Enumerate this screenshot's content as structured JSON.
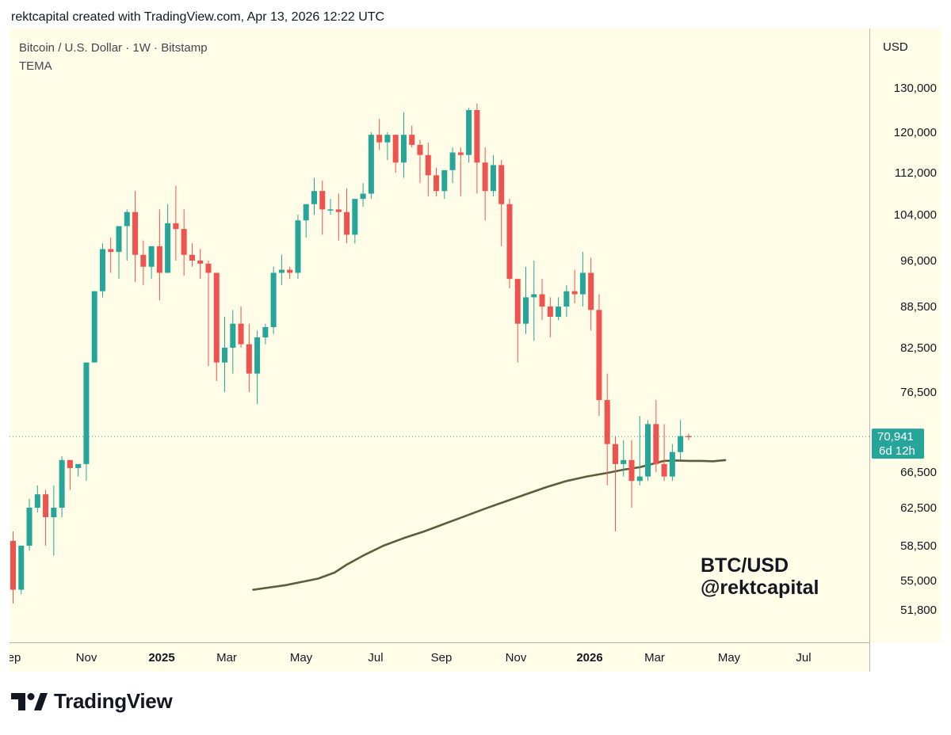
{
  "header": {
    "attribution": "rektcapital created with TradingView.com, Apr 13, 2026 12:22 UTC"
  },
  "footer": {
    "brand": "TradingView",
    "logo_icon": "tradingview-logo-icon"
  },
  "colors": {
    "background": "#fffde8",
    "up": "#26a69a",
    "down": "#ef5350",
    "tema": "#5d5d3d",
    "axis_text": "#131722",
    "price_tag": "#26a69a"
  },
  "chart_data": {
    "type": "candlestick",
    "title": "Bitcoin / U.S. Dollar · 1W · Bitstamp",
    "indicator": "TEMA",
    "currency": "USD",
    "watermark": [
      "BTC/USD",
      "@rektcapital"
    ],
    "last_price_label": "70,941",
    "countdown_label": "6d 12h",
    "last_price": 70941,
    "y_ticks": [
      130000,
      120000,
      112000,
      104000,
      96000,
      88500,
      82500,
      76500,
      66500,
      62500,
      58500,
      55000,
      51800
    ],
    "y_tick_labels": [
      "130,000",
      "120,000",
      "112,000",
      "104,000",
      "96,000",
      "88,500",
      "82,500",
      "76,500",
      "66,500",
      "62,500",
      "58,500",
      "55,000",
      "51,800"
    ],
    "x_labels": [
      {
        "label": "ep",
        "bold": false
      },
      {
        "label": "Nov",
        "bold": false
      },
      {
        "label": "2025",
        "bold": true
      },
      {
        "label": "Mar",
        "bold": false
      },
      {
        "label": "May",
        "bold": false
      },
      {
        "label": "Jul",
        "bold": false
      },
      {
        "label": "Sep",
        "bold": false
      },
      {
        "label": "Nov",
        "bold": false
      },
      {
        "label": "2026",
        "bold": true
      },
      {
        "label": "Mar",
        "bold": false
      },
      {
        "label": "May",
        "bold": false
      },
      {
        "label": "Jul",
        "bold": false
      }
    ],
    "candles_ohlc": [
      [
        59000,
        60000,
        52500,
        54000
      ],
      [
        54000,
        58500,
        53500,
        58500
      ],
      [
        58500,
        63500,
        58000,
        62500
      ],
      [
        62500,
        65000,
        62000,
        64000
      ],
      [
        64000,
        64500,
        58500,
        61500
      ],
      [
        61500,
        65000,
        57500,
        62500
      ],
      [
        62500,
        68500,
        61500,
        68000
      ],
      [
        68000,
        68000,
        64500,
        67000
      ],
      [
        67000,
        67500,
        66000,
        67500
      ],
      [
        67500,
        74000,
        65500,
        80500
      ],
      [
        80500,
        91000,
        80500,
        91000
      ],
      [
        91000,
        99000,
        90000,
        98000
      ],
      [
        98000,
        100000,
        94000,
        97500
      ],
      [
        97500,
        102000,
        93000,
        102000
      ],
      [
        102000,
        105000,
        96000,
        104500
      ],
      [
        104500,
        108500,
        92500,
        97000
      ],
      [
        97000,
        99500,
        92000,
        95000
      ],
      [
        95000,
        98000,
        93000,
        98500
      ],
      [
        98500,
        105000,
        89500,
        94000
      ],
      [
        94000,
        106000,
        94000,
        102500
      ],
      [
        102500,
        109500,
        96000,
        101500
      ],
      [
        101500,
        105000,
        93500,
        97000
      ],
      [
        97000,
        99000,
        95000,
        96000
      ],
      [
        96000,
        98000,
        93000,
        95500
      ],
      [
        95500,
        96000,
        80000,
        94000
      ],
      [
        94000,
        94000,
        78000,
        80500
      ],
      [
        80500,
        87000,
        76500,
        82500
      ],
      [
        82500,
        88000,
        79000,
        86000
      ],
      [
        86000,
        88500,
        82500,
        83000
      ],
      [
        83000,
        86000,
        76500,
        79000
      ],
      [
        79000,
        85000,
        75000,
        84000
      ],
      [
        84000,
        86000,
        83000,
        85500
      ],
      [
        85500,
        95000,
        84500,
        94000
      ],
      [
        94000,
        97000,
        92000,
        94500
      ],
      [
        94500,
        95000,
        93000,
        94000
      ],
      [
        94000,
        104000,
        93000,
        103000
      ],
      [
        103000,
        106000,
        100000,
        106000
      ],
      [
        106000,
        111000,
        104000,
        108500
      ],
      [
        108500,
        110500,
        100500,
        105000
      ],
      [
        105000,
        107000,
        104000,
        105000
      ],
      [
        105000,
        108000,
        99500,
        104500
      ],
      [
        104500,
        109000,
        99000,
        100500
      ],
      [
        100500,
        107000,
        99000,
        107000
      ],
      [
        107000,
        110000,
        105500,
        108000
      ],
      [
        108000,
        120000,
        107000,
        119500
      ],
      [
        119500,
        123000,
        116500,
        118000
      ],
      [
        118000,
        120000,
        114500,
        119500
      ],
      [
        119500,
        119500,
        112000,
        114000
      ],
      [
        114000,
        124500,
        111000,
        119500
      ],
      [
        119500,
        121500,
        117000,
        117500
      ],
      [
        117500,
        118500,
        110000,
        115500
      ],
      [
        115500,
        118000,
        107500,
        111500
      ],
      [
        111500,
        113000,
        107500,
        108500
      ],
      [
        108500,
        112000,
        107000,
        112500
      ],
      [
        112500,
        117000,
        110000,
        116000
      ],
      [
        116000,
        117000,
        107500,
        115500
      ],
      [
        115500,
        125500,
        114000,
        125000
      ],
      [
        125000,
        126500,
        108000,
        114000
      ],
      [
        114000,
        117000,
        103000,
        108500
      ],
      [
        108500,
        115500,
        107500,
        113500
      ],
      [
        113500,
        114500,
        98500,
        106000
      ],
      [
        106000,
        107000,
        91500,
        93000
      ],
      [
        93000,
        93000,
        80500,
        86000
      ],
      [
        86000,
        95000,
        84500,
        90000
      ],
      [
        90000,
        96000,
        83500,
        90500
      ],
      [
        90500,
        93000,
        86500,
        88500
      ],
      [
        88500,
        90000,
        84000,
        87000
      ],
      [
        87000,
        90000,
        86500,
        88500
      ],
      [
        88500,
        92000,
        87000,
        91000
      ],
      [
        91000,
        94500,
        89000,
        90500
      ],
      [
        90500,
        97500,
        88500,
        94000
      ],
      [
        94000,
        96500,
        85000,
        88000
      ],
      [
        88000,
        90500,
        73500,
        75500
      ],
      [
        75500,
        79000,
        65000,
        70000
      ],
      [
        70000,
        71000,
        60000,
        67500
      ],
      [
        67500,
        70500,
        66000,
        68000
      ],
      [
        68000,
        70500,
        62500,
        65500
      ],
      [
        65500,
        73500,
        65000,
        66000
      ],
      [
        66000,
        73000,
        65500,
        72500
      ],
      [
        72500,
        75500,
        66500,
        67500
      ],
      [
        67500,
        72500,
        65500,
        66000
      ],
      [
        66000,
        70000,
        65500,
        69000
      ],
      [
        69000,
        73000,
        68000,
        71000
      ],
      [
        71000,
        71300,
        70500,
        70941
      ]
    ],
    "tema_series": [
      [
        29.5,
        54.0
      ],
      [
        33.5,
        54.5
      ],
      [
        37.5,
        55.2
      ],
      [
        39.5,
        55.8
      ],
      [
        41.0,
        56.6
      ],
      [
        43.0,
        57.5
      ],
      [
        45.5,
        58.5
      ],
      [
        48.0,
        59.3
      ],
      [
        50.5,
        60.0
      ],
      [
        53.0,
        60.8
      ],
      [
        55.5,
        61.6
      ],
      [
        58.0,
        62.4
      ],
      [
        60.5,
        63.2
      ],
      [
        63.0,
        64.0
      ],
      [
        65.5,
        64.8
      ],
      [
        68.0,
        65.5
      ],
      [
        70.5,
        66.0
      ],
      [
        73.0,
        66.4
      ],
      [
        75.0,
        66.8
      ],
      [
        77.0,
        67.1
      ],
      [
        78.5,
        67.5
      ],
      [
        80.0,
        67.9
      ],
      [
        81.5,
        67.95
      ],
      [
        83.0,
        67.9
      ],
      [
        84.5,
        67.9
      ],
      [
        86.0,
        67.85
      ],
      [
        87.5,
        68.0
      ]
    ]
  }
}
